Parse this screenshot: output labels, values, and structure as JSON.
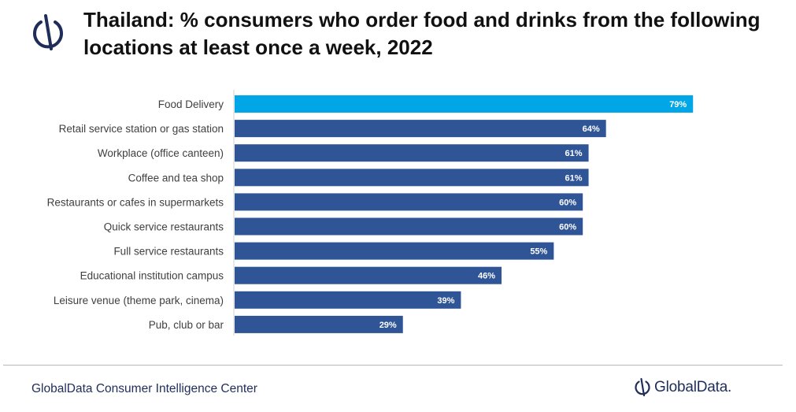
{
  "title": "Thailand: % consumers who order food and drinks from the following locations at least once a week, 2022",
  "footer": {
    "source": "GlobalData Consumer Intelligence Center",
    "brand": "GlobalData."
  },
  "colors": {
    "highlight": "#00a6e6",
    "bar": "#2f5597",
    "text": "#404040",
    "brand": "#1f2d5a"
  },
  "icons": {
    "header_logo": "globaldata-logo-icon",
    "footer_logo": "globaldata-logo-icon"
  },
  "chart_data": {
    "type": "bar",
    "orientation": "horizontal",
    "categories": [
      "Food Delivery",
      "Retail service station or gas station",
      "Workplace (office canteen)",
      "Coffee and tea shop",
      "Restaurants or cafes in supermarkets",
      "Quick service restaurants",
      "Full service restaurants",
      "Educational institution campus",
      "Leisure venue (theme park, cinema)",
      "Pub, club or bar"
    ],
    "values": [
      79,
      64,
      61,
      61,
      60,
      60,
      55,
      46,
      39,
      29
    ],
    "value_labels": [
      "79%",
      "64%",
      "61%",
      "61%",
      "60%",
      "60%",
      "55%",
      "46%",
      "39%",
      "29%"
    ],
    "highlighted": [
      0
    ],
    "xlim": [
      0,
      100
    ],
    "grid": false,
    "legend": "none"
  }
}
